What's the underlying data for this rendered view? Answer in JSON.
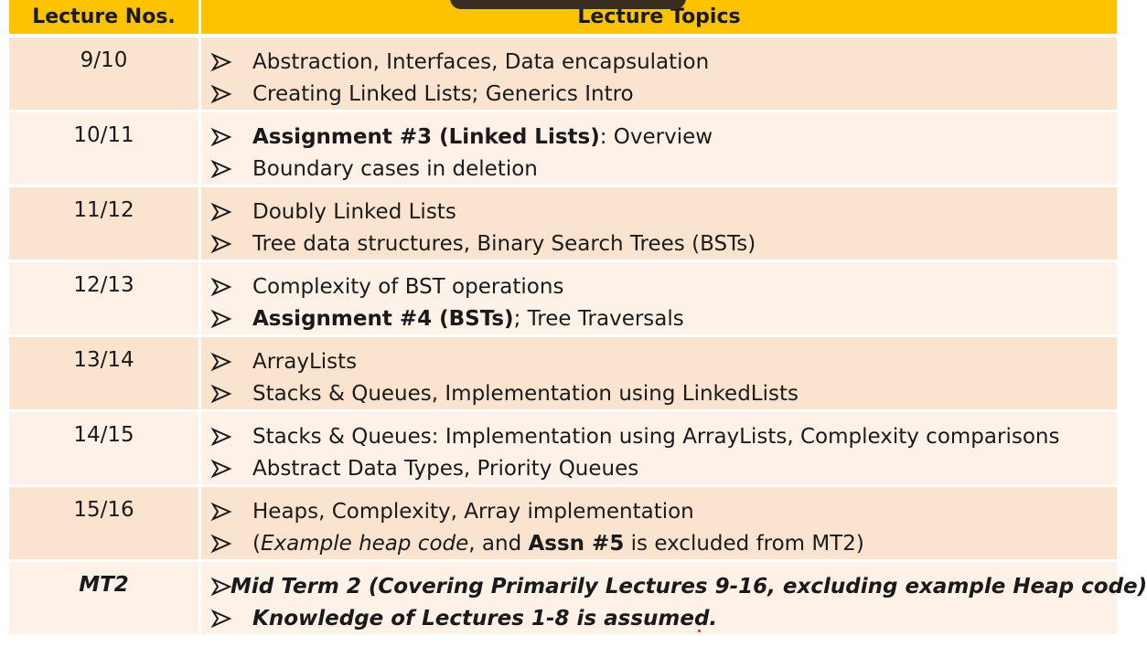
{
  "header": {
    "col1": "Lecture Nos.",
    "col2": "Lecture Topics"
  },
  "rows": [
    {
      "num": "9/10",
      "bullets": [
        [
          {
            "t": "Abstraction, Interfaces, Data encapsulation",
            "s": ""
          }
        ],
        [
          {
            "t": "Creating Linked Lists; Generics Intro",
            "s": ""
          }
        ]
      ]
    },
    {
      "num": "10/11",
      "bullets": [
        [
          {
            "t": "Assignment #3 (Linked Lists)",
            "s": "b"
          },
          {
            "t": ": Overview",
            "s": ""
          }
        ],
        [
          {
            "t": "Boundary cases in deletion",
            "s": ""
          }
        ]
      ]
    },
    {
      "num": "11/12",
      "bullets": [
        [
          {
            "t": "Doubly Linked Lists",
            "s": ""
          }
        ],
        [
          {
            "t": "Tree data structures, Binary Search Trees (BSTs)",
            "s": ""
          }
        ]
      ]
    },
    {
      "num": "12/13",
      "bullets": [
        [
          {
            "t": "Complexity of BST operations",
            "s": ""
          }
        ],
        [
          {
            "t": "Assignment #4 (BSTs)",
            "s": "b"
          },
          {
            "t": "; Tree Traversals",
            "s": ""
          }
        ]
      ]
    },
    {
      "num": "13/14",
      "bullets": [
        [
          {
            "t": "ArrayLists",
            "s": ""
          }
        ],
        [
          {
            "t": "Stacks & Queues, Implementation using LinkedLists",
            "s": ""
          }
        ]
      ]
    },
    {
      "num": "14/15",
      "bullets": [
        [
          {
            "t": "Stacks & Queues: Implementation using ArrayLists, Complexity comparisons",
            "s": ""
          }
        ],
        [
          {
            "t": "Abstract Data Types, Priority Queues",
            "s": ""
          }
        ]
      ]
    },
    {
      "num": "15/16",
      "bullets": [
        [
          {
            "t": "Heaps, Complexity, Array implementation",
            "s": ""
          }
        ],
        [
          {
            "t": "(",
            "s": ""
          },
          {
            "t": "Example heap code",
            "s": "i"
          },
          {
            "t": ", and ",
            "s": ""
          },
          {
            "t": "Assn #5",
            "s": "b"
          },
          {
            "t": " is excluded from MT2)",
            "s": ""
          }
        ]
      ]
    },
    {
      "num": "MT2",
      "num_style": "bi",
      "bullets": [
        [
          {
            "t": "Mid Term 2 (Covering Primarily Lectures 9-16, excluding example Heap code)",
            "s": "bi"
          }
        ],
        [
          {
            "t": "Knowledge of Lectures 1-8 is assumed.",
            "s": "bi"
          }
        ]
      ]
    }
  ],
  "colors": {
    "header": "#fdc300",
    "row_odd": "#fbe4cf",
    "row_even": "#fdf1e8"
  },
  "icons": {
    "bullet": "arrowhead-bullet-icon"
  }
}
